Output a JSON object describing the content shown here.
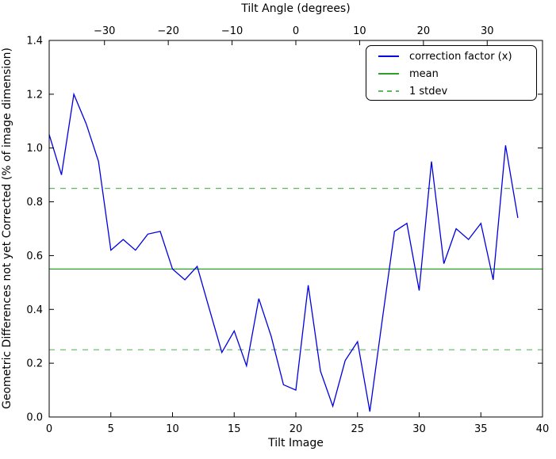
{
  "chart_data": {
    "type": "line",
    "xlabel": "Tilt Image",
    "ylabel": "Geometric Differences not yet Corrected (% of image dimension)",
    "xlim": [
      0,
      40
    ],
    "ylim": [
      0.0,
      1.4
    ],
    "grid": false,
    "x_tick_values": [
      0,
      5,
      10,
      15,
      20,
      25,
      30,
      35,
      40
    ],
    "x_tick_labels": [
      "0",
      "5",
      "10",
      "15",
      "20",
      "25",
      "30",
      "35",
      "40"
    ],
    "y_tick_values": [
      0.0,
      0.2,
      0.4,
      0.6,
      0.8,
      1.0,
      1.2,
      1.4
    ],
    "y_tick_labels": [
      "0.0",
      "0.2",
      "0.4",
      "0.6",
      "0.8",
      "1.0",
      "1.2",
      "1.4"
    ],
    "top_axis": {
      "label": "Tilt Angle (degrees)",
      "tick_values": [
        -30,
        -20,
        -10,
        0,
        10,
        20,
        30
      ],
      "tick_labels": [
        "−30",
        "−20",
        "−10",
        "0",
        "10",
        "20",
        "30"
      ],
      "frac_per_degree": 0.01293
    },
    "x": [
      0,
      1,
      2,
      3,
      4,
      5,
      6,
      7,
      8,
      9,
      10,
      11,
      12,
      13,
      14,
      15,
      16,
      17,
      18,
      19,
      20,
      21,
      22,
      23,
      24,
      25,
      26,
      27,
      28,
      29,
      30,
      31,
      32,
      33,
      34,
      35,
      36,
      37,
      38
    ],
    "series": [
      {
        "name": "correction factor (x)",
        "color": "#0000e0",
        "style": "solid",
        "values": [
          1.05,
          0.9,
          1.2,
          1.09,
          0.95,
          0.62,
          0.66,
          0.62,
          0.68,
          0.69,
          0.55,
          0.51,
          0.56,
          0.4,
          0.24,
          0.32,
          0.19,
          0.44,
          0.3,
          0.12,
          0.1,
          0.49,
          0.17,
          0.04,
          0.21,
          0.28,
          0.02,
          0.36,
          0.69,
          0.72,
          0.47,
          0.95,
          0.57,
          0.7,
          0.66,
          0.72,
          0.51,
          1.01,
          0.74
        ]
      }
    ],
    "mean_line": {
      "value": 0.55,
      "color": "#2e9e2e"
    },
    "stdev_lines": {
      "values": [
        0.85,
        0.25
      ],
      "color": "#5cb85c",
      "dash": "7 7"
    },
    "legend": {
      "position": "upper-right",
      "entries": [
        {
          "label": "correction factor (x)",
          "color": "#0000e0",
          "dash": false
        },
        {
          "label": "mean",
          "color": "#2e9e2e",
          "dash": false
        },
        {
          "label": "1 stdev",
          "color": "#5cb85c",
          "dash": true
        }
      ]
    },
    "axis_color": "#000000",
    "background": "#ffffff"
  }
}
